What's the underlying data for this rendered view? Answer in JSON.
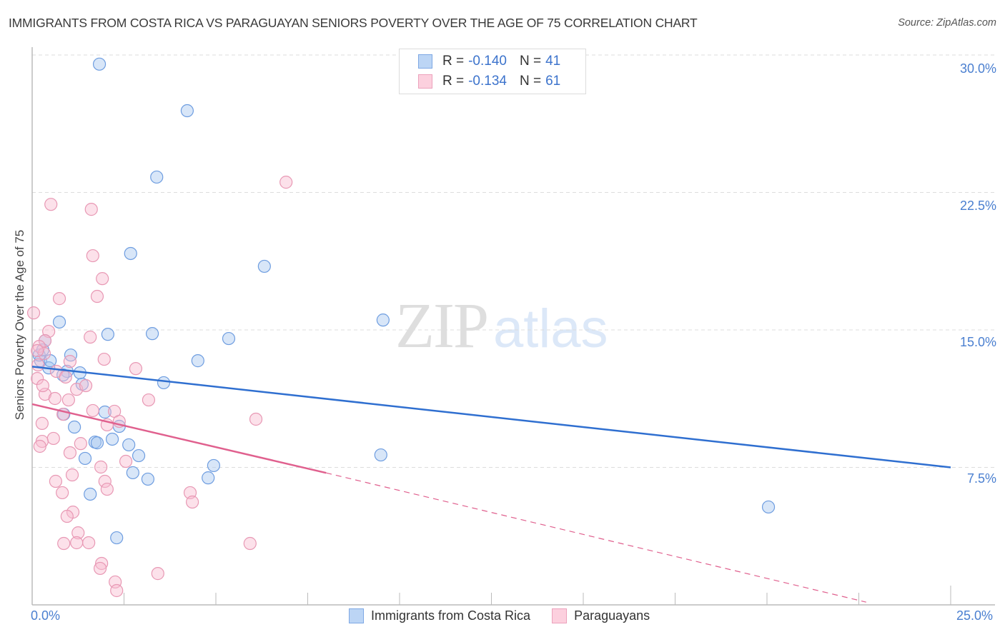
{
  "header": {
    "title": "IMMIGRANTS FROM COSTA RICA VS PARAGUAYAN SENIORS POVERTY OVER THE AGE OF 75 CORRELATION CHART",
    "source": "Source: ZipAtlas.com"
  },
  "watermark": {
    "zip": "ZIP",
    "atlas": "atlas"
  },
  "axes": {
    "ylabel": "Seniors Poverty Over the Age of 75",
    "yticks": [
      "30.0%",
      "22.5%",
      "15.0%",
      "7.5%"
    ],
    "xticks": [
      "0.0%",
      "25.0%"
    ]
  },
  "legend_top": {
    "rows": [
      {
        "r_label": "R =",
        "r_value": "-0.140",
        "n_label": "N =",
        "n_value": "41",
        "color": "#a8c8f0"
      },
      {
        "r_label": "R =",
        "r_value": "-0.134",
        "n_label": "N =",
        "n_value": "61",
        "color": "#f8bcd0"
      }
    ]
  },
  "legend_bottom": {
    "items": [
      {
        "label": "Immigrants from Costa Rica",
        "color": "#a8c8f0"
      },
      {
        "label": "Paraguayans",
        "color": "#f8bcd0"
      }
    ]
  },
  "colors": {
    "blue_fill": "rgba(168,200,240,0.45)",
    "blue_stroke": "#6e9de0",
    "blue_line": "#2f6fd0",
    "pink_fill": "rgba(248,188,208,0.45)",
    "pink_stroke": "#e898b4",
    "pink_line": "#e0608e"
  },
  "chart_data": {
    "type": "scatter",
    "title": "IMMIGRANTS FROM COSTA RICA VS PARAGUAYAN SENIORS POVERTY OVER THE AGE OF 75 CORRELATION CHART",
    "xlabel": "",
    "ylabel": "Seniors Poverty Over the Age of 75",
    "xlim": [
      0,
      25
    ],
    "ylim": [
      0,
      30
    ],
    "x_ticks": [
      "0.0%",
      "25.0%"
    ],
    "y_ticks": [
      "7.5%",
      "15.0%",
      "22.5%",
      "30.0%"
    ],
    "grid": true,
    "legend_position": "top-center",
    "series": [
      {
        "name": "Immigrants from Costa Rica",
        "R": -0.14,
        "N": 41,
        "color": "#a8c8f0",
        "trend": {
          "x": [
            0,
            25
          ],
          "y": [
            13.0,
            7.5
          ],
          "style": "solid"
        },
        "points": [
          [
            1.83,
            29.5
          ],
          [
            4.22,
            26.96
          ],
          [
            3.39,
            23.34
          ],
          [
            2.68,
            19.17
          ],
          [
            6.32,
            18.47
          ],
          [
            9.55,
            15.54
          ],
          [
            0.74,
            15.43
          ],
          [
            2.06,
            14.76
          ],
          [
            3.27,
            14.8
          ],
          [
            5.35,
            14.53
          ],
          [
            0.35,
            14.41
          ],
          [
            1.05,
            13.63
          ],
          [
            4.51,
            13.32
          ],
          [
            0.23,
            13.32
          ],
          [
            0.45,
            12.93
          ],
          [
            1.3,
            12.66
          ],
          [
            0.95,
            12.74
          ],
          [
            1.36,
            12.04
          ],
          [
            3.58,
            12.12
          ],
          [
            0.86,
            10.4
          ],
          [
            1.98,
            10.52
          ],
          [
            2.37,
            9.74
          ],
          [
            1.15,
            9.7
          ],
          [
            2.18,
            9.04
          ],
          [
            1.71,
            8.88
          ],
          [
            1.77,
            8.84
          ],
          [
            2.63,
            8.73
          ],
          [
            2.9,
            8.14
          ],
          [
            1.44,
            7.99
          ],
          [
            9.49,
            8.18
          ],
          [
            4.94,
            7.6
          ],
          [
            2.74,
            7.21
          ],
          [
            3.15,
            6.86
          ],
          [
            4.79,
            6.93
          ],
          [
            1.58,
            6.04
          ],
          [
            20.04,
            5.34
          ],
          [
            2.3,
            3.66
          ],
          [
            0.19,
            13.63
          ],
          [
            0.29,
            13.91
          ],
          [
            0.49,
            13.32
          ],
          [
            0.84,
            12.54
          ]
        ]
      },
      {
        "name": "Paraguayans",
        "R": -0.134,
        "N": 61,
        "color": "#f8bcd0",
        "trend": {
          "x": [
            0,
            8.0
          ],
          "y": [
            10.95,
            7.2
          ],
          "style": "solid",
          "extended": {
            "x": [
              8.0,
              22.7
            ],
            "y": [
              7.2,
              0.15
            ],
            "style": "dashed"
          }
        },
        "points": [
          [
            6.91,
            23.06
          ],
          [
            0.51,
            21.85
          ],
          [
            1.61,
            21.58
          ],
          [
            1.65,
            19.05
          ],
          [
            1.91,
            17.8
          ],
          [
            0.74,
            16.71
          ],
          [
            1.77,
            16.83
          ],
          [
            0.04,
            15.93
          ],
          [
            0.45,
            14.92
          ],
          [
            1.58,
            14.61
          ],
          [
            0.35,
            14.41
          ],
          [
            0.19,
            14.1
          ],
          [
            0.33,
            13.71
          ],
          [
            1.96,
            13.4
          ],
          [
            0.14,
            13.87
          ],
          [
            1.03,
            13.28
          ],
          [
            2.82,
            12.89
          ],
          [
            0.66,
            12.74
          ],
          [
            0.91,
            12.43
          ],
          [
            0.14,
            12.35
          ],
          [
            1.21,
            11.76
          ],
          [
            0.35,
            11.49
          ],
          [
            3.17,
            11.18
          ],
          [
            0.99,
            11.18
          ],
          [
            0.62,
            11.26
          ],
          [
            2.24,
            10.56
          ],
          [
            0.84,
            10.4
          ],
          [
            2.37,
            10.01
          ],
          [
            6.09,
            10.13
          ],
          [
            0.27,
            9.9
          ],
          [
            0.58,
            9.08
          ],
          [
            0.27,
            8.92
          ],
          [
            0.21,
            8.65
          ],
          [
            1.32,
            8.8
          ],
          [
            1.03,
            8.3
          ],
          [
            2.55,
            7.83
          ],
          [
            1.87,
            7.52
          ],
          [
            1.09,
            7.09
          ],
          [
            1.98,
            6.74
          ],
          [
            0.64,
            6.74
          ],
          [
            2.04,
            6.31
          ],
          [
            0.82,
            6.12
          ],
          [
            4.3,
            6.12
          ],
          [
            4.36,
            5.61
          ],
          [
            1.11,
            5.06
          ],
          [
            0.95,
            4.83
          ],
          [
            1.25,
            3.93
          ],
          [
            0.86,
            3.35
          ],
          [
            1.21,
            3.39
          ],
          [
            1.54,
            3.39
          ],
          [
            5.93,
            3.35
          ],
          [
            1.89,
            2.26
          ],
          [
            1.85,
            1.99
          ],
          [
            3.42,
            1.71
          ],
          [
            2.26,
            1.25
          ],
          [
            2.3,
            0.78
          ],
          [
            0.16,
            13.09
          ],
          [
            0.29,
            11.96
          ],
          [
            1.46,
            11.96
          ],
          [
            2.04,
            9.82
          ],
          [
            1.65,
            10.6
          ]
        ]
      }
    ]
  }
}
